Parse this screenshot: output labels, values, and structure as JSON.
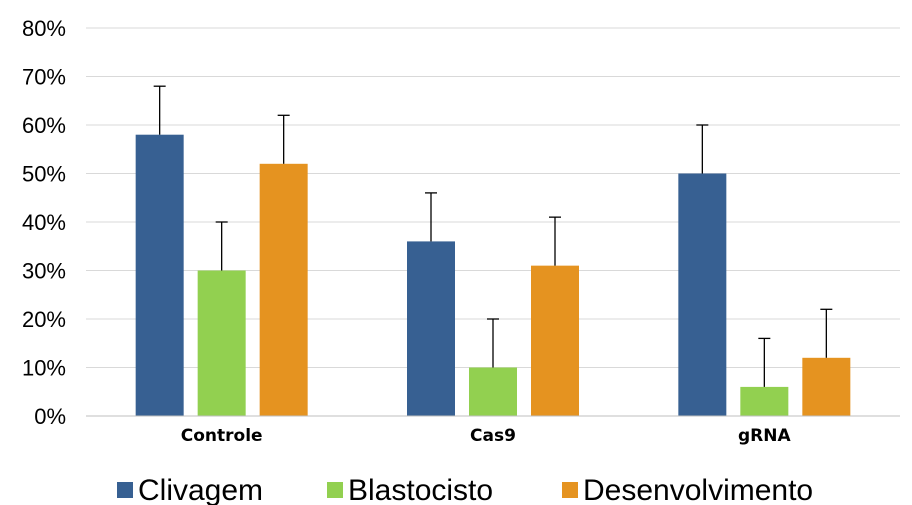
{
  "chart_data": {
    "type": "bar",
    "categories": [
      "Controle",
      "Cas9",
      "gRNA"
    ],
    "series": [
      {
        "name": "Clivagem",
        "values": [
          58,
          36,
          50
        ],
        "errors": [
          10,
          10,
          10
        ],
        "color": "#376092"
      },
      {
        "name": "Blastocisto",
        "values": [
          30,
          10,
          6
        ],
        "errors": [
          10,
          10,
          10
        ],
        "color": "#92d050"
      },
      {
        "name": "Desenvolvimento",
        "values": [
          52,
          31,
          12
        ],
        "errors": [
          10,
          10,
          10
        ],
        "color": "#e59320"
      }
    ],
    "yticks": [
      "0%",
      "10%",
      "20%",
      "30%",
      "40%",
      "50%",
      "60%",
      "70%",
      "80%"
    ],
    "ylim": [
      0,
      80
    ],
    "grid": true,
    "legend_position": "bottom",
    "error_bars": "upper"
  }
}
